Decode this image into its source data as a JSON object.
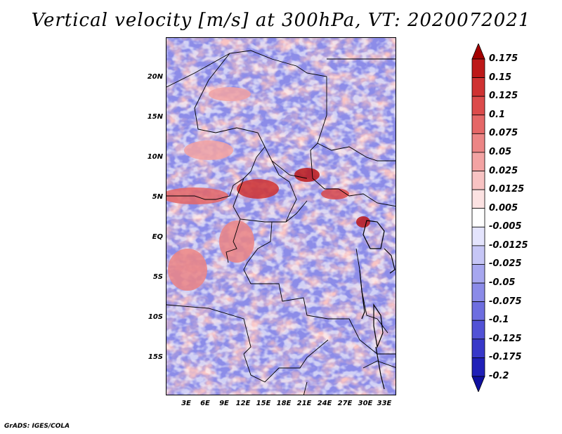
{
  "title": "Vertical velocity [m/s] at 300hPa, VT: 2020072021",
  "credit": "GrADS: IGES/COLA",
  "map": {
    "variable": "vertical velocity",
    "level": "300hPa",
    "lat_ticks": [
      "20N",
      "15N",
      "10N",
      "5N",
      "EQ",
      "5S",
      "10S",
      "15S"
    ],
    "lon_ticks": [
      "3E",
      "6E",
      "9E",
      "12E",
      "15E",
      "18E",
      "21E",
      "24E",
      "27E",
      "30E",
      "33E"
    ]
  },
  "colorbar": {
    "levels": [
      "0.175",
      "0.15",
      "0.125",
      "0.1",
      "0.075",
      "0.05",
      "0.025",
      "0.0125",
      "0.005",
      "-0.005",
      "-0.0125",
      "-0.025",
      "-0.05",
      "-0.075",
      "-0.1",
      "-0.125",
      "-0.175",
      "-0.2"
    ],
    "colors": [
      "#a40000",
      "#bd1919",
      "#cf3232",
      "#dc4b4b",
      "#e56767",
      "#ec8585",
      "#f3a3a3",
      "#f8c3c3",
      "#fce2e2",
      "#ffffff",
      "#e4e4fd",
      "#c6c6f6",
      "#a7a7ef",
      "#8b8be8",
      "#6e6ee0",
      "#5252d6",
      "#3838c9",
      "#2020b8",
      "#1010a0"
    ]
  }
}
